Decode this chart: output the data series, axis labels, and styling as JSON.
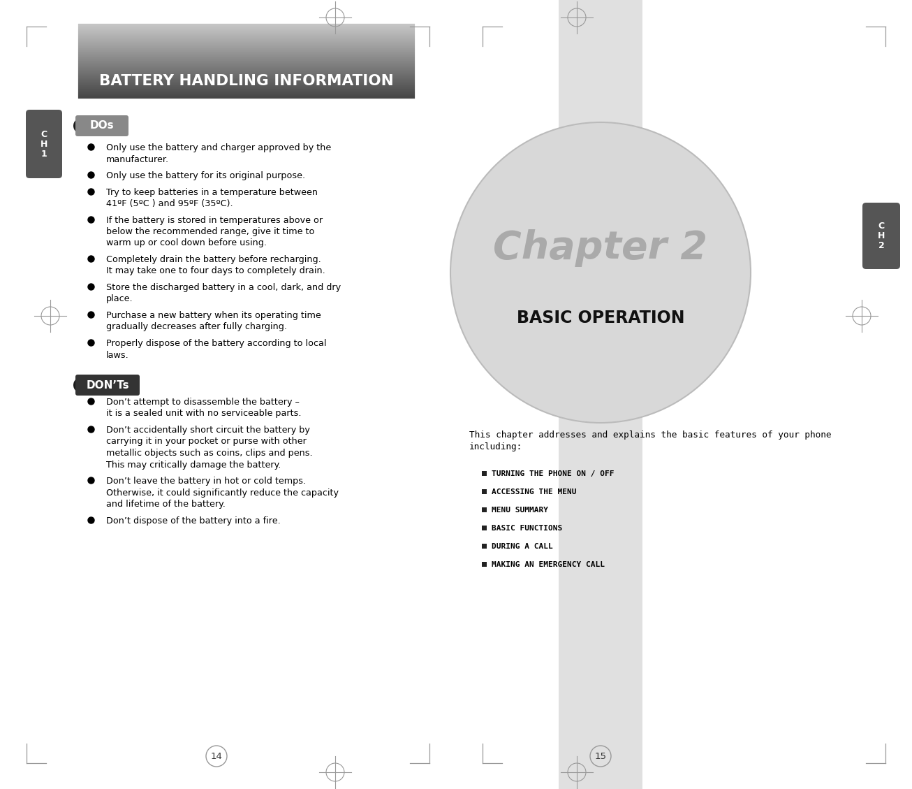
{
  "bg_color": "#ffffff",
  "header_text": "BATTERY HANDLING INFORMATION",
  "header_text_color": "#ffffff",
  "ch1_label": "C\nH\n1",
  "ch2_label": "C\nH\n2",
  "ch_bg_color": "#555555",
  "ch_text_color": "#ffffff",
  "dos_label": "DOs",
  "donts_label": "DON’Ts",
  "dos_bg": "#888888",
  "donts_bg": "#333333",
  "dos_items": [
    "Only use the battery and charger approved by the\nmanufacturer.",
    "Only use the battery for its original purpose.",
    "Try to keep batteries in a temperature between\n41ºF (5ºC ) and 95ºF (35ºC).",
    "If the battery is stored in temperatures above or\nbelow the recommended range, give it time to\nwarm up or cool down before using.",
    "Completely drain the battery before recharging.\nIt may take one to four days to completely drain.",
    "Store the discharged battery in a cool, dark, and dry\nplace.",
    "Purchase a new battery when its operating time\ngradually decreases after fully charging.",
    "Properly dispose of the battery according to local\nlaws."
  ],
  "donts_items": [
    "Don’t attempt to disassemble the battery –\nit is a sealed unit with no serviceable parts.",
    "Don’t accidentally short circuit the battery by\ncarrying it in your pocket or purse with other\nmetallic objects such as coins, clips and pens.\nThis may critically damage the battery.",
    "Don’t leave the battery in hot or cold temps.\nOtherwise, it could significantly reduce the capacity\nand lifetime of the battery.",
    "Don’t dispose of the battery into a fire."
  ],
  "chapter2_title": "Chapter 2",
  "chapter2_subtitle": "BASIC OPERATION",
  "chapter2_title_color": "#aaaaaa",
  "chapter2_subtitle_color": "#111111",
  "circle_fill": "#d8d8d8",
  "circle_edge": "#bbbbbb",
  "strip_color": "#e0e0e0",
  "intro_text": "This chapter addresses and explains the basic features of your phone\nincluding:",
  "menu_items": [
    "TURNING THE PHONE ON / OFF",
    "ACCESSING THE MENU",
    "MENU SUMMARY",
    "BASIC FUNCTIONS",
    "DURING A CALL",
    "MAKING AN EMERGENCY CALL"
  ],
  "page14": "14",
  "page15": "15",
  "body_text_color": "#000000",
  "mark_color": "#999999"
}
